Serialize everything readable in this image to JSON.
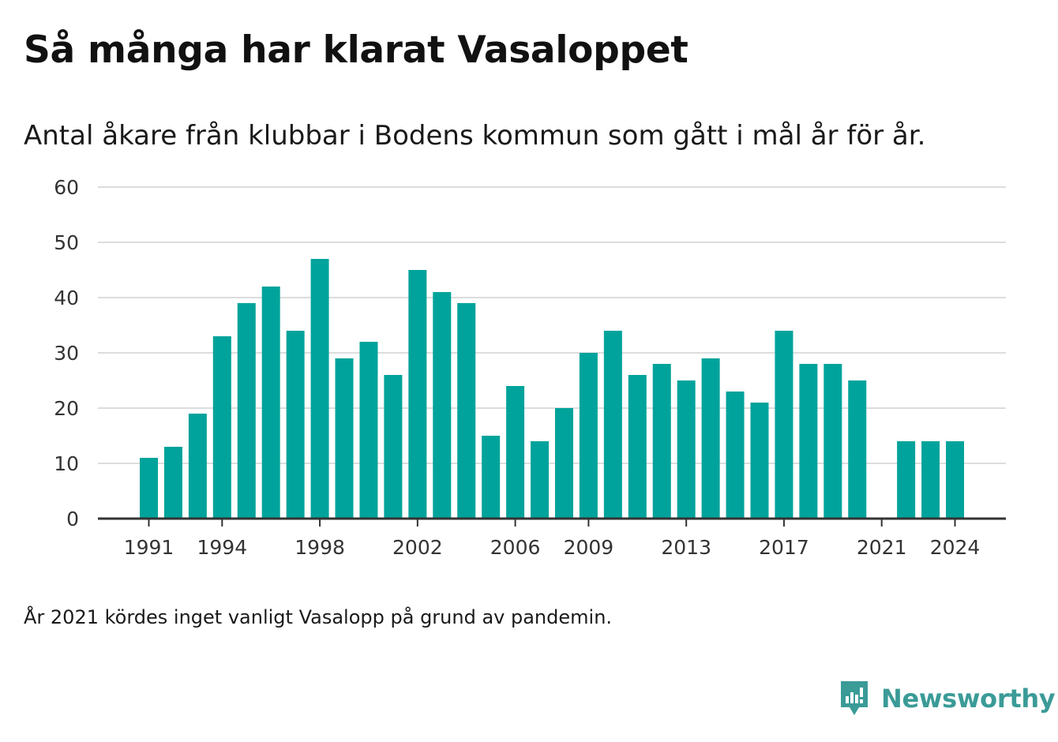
{
  "title": "Så många har klarat Vasaloppet",
  "subtitle": "Antal åkare från klubbar i Bodens kommun som gått i mål år för år.",
  "note": "År 2021 kördes inget vanligt Vasalopp på grund av pandemin.",
  "brand": {
    "name": "Newsworthy",
    "icon": "newsworthy-logo-icon"
  },
  "colors": {
    "bar": "#00a39b",
    "grid": "#dddddd",
    "axis": "#333333",
    "brand": "#3b9b97"
  },
  "chart_data": {
    "type": "bar",
    "title": "Så många har klarat Vasaloppet",
    "subtitle": "Antal åkare från klubbar i Bodens kommun som gått i mål år för år.",
    "xlabel": "",
    "ylabel": "",
    "ylim": [
      0,
      60
    ],
    "yticks": [
      0,
      10,
      20,
      30,
      40,
      50,
      60
    ],
    "xticks": [
      1991,
      1994,
      1998,
      2002,
      2006,
      2009,
      2013,
      2017,
      2021,
      2024
    ],
    "grid": true,
    "x": [
      1991,
      1992,
      1993,
      1994,
      1995,
      1996,
      1997,
      1998,
      1999,
      2000,
      2001,
      2002,
      2003,
      2004,
      2005,
      2006,
      2007,
      2008,
      2009,
      2010,
      2011,
      2012,
      2013,
      2014,
      2015,
      2016,
      2017,
      2018,
      2019,
      2020,
      2021,
      2022,
      2023,
      2024
    ],
    "values": [
      11,
      13,
      19,
      33,
      39,
      42,
      34,
      47,
      29,
      32,
      26,
      45,
      41,
      39,
      15,
      24,
      14,
      20,
      30,
      34,
      26,
      28,
      25,
      29,
      23,
      21,
      34,
      28,
      28,
      25,
      null,
      14,
      14,
      14
    ]
  }
}
